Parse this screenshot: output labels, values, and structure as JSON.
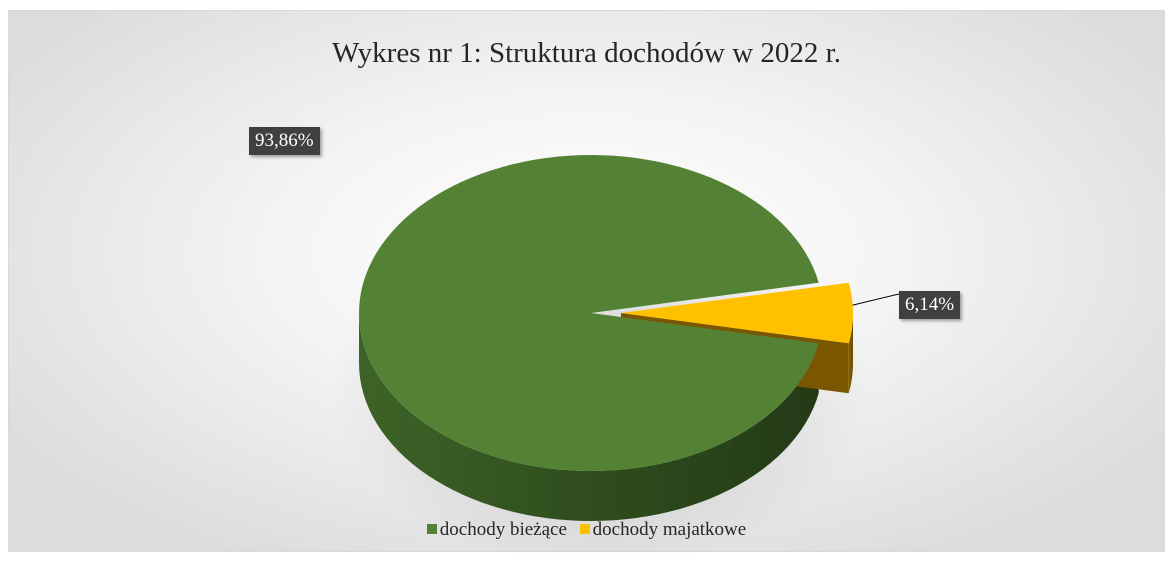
{
  "chart_data": {
    "type": "pie",
    "title": "Wykres nr 1: Struktura dochodów w 2022 r.",
    "three_d": true,
    "legend_position": "bottom",
    "slices": [
      {
        "name": "dochody bieżące",
        "value": 93.86,
        "label": "93,86%",
        "color": "#548235",
        "exploded": false
      },
      {
        "name": "dochody majatkowe",
        "value": 6.14,
        "label": "6,14%",
        "color": "#ffc000",
        "exploded": true
      }
    ]
  }
}
